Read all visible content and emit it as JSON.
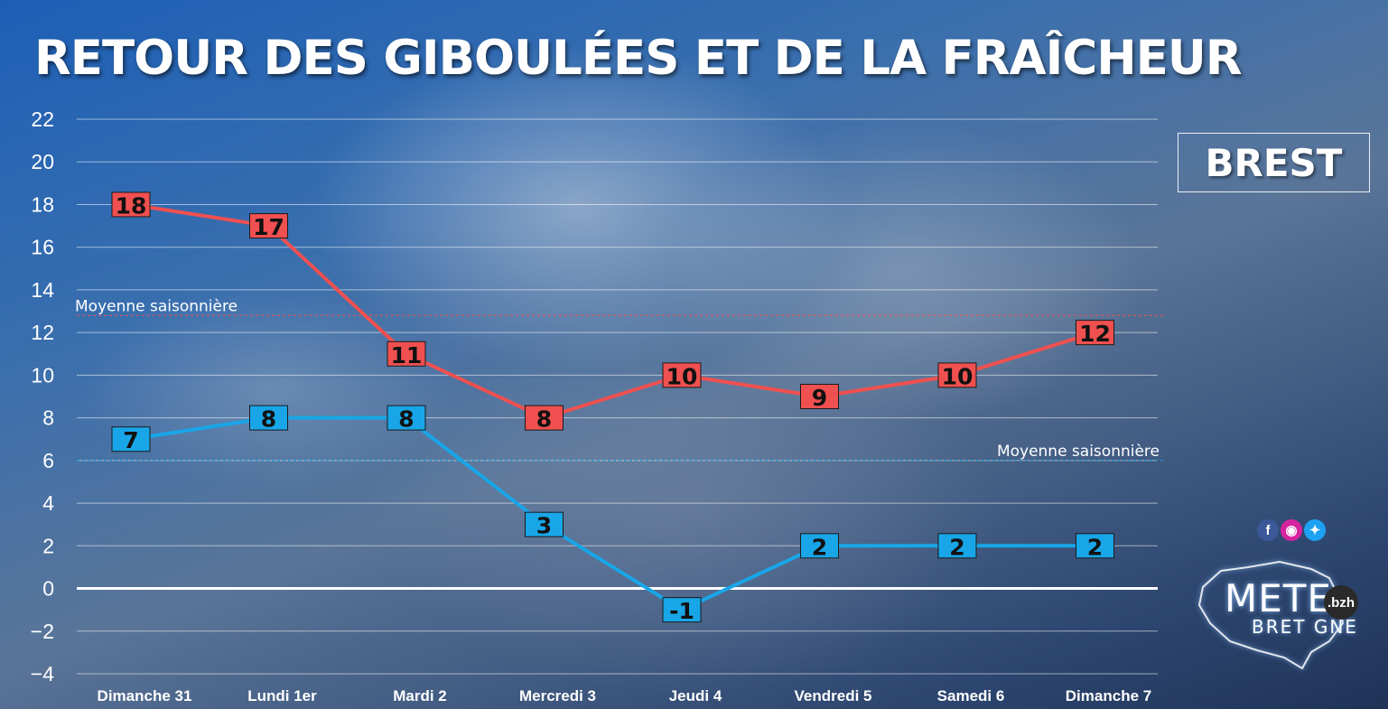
{
  "title": "RETOUR DES GIBOULÉES ET DE LA FRAÎCHEUR",
  "city": "BREST",
  "colors": {
    "max": "#f05050",
    "min": "#18a6e8",
    "label_text": "#111111"
  },
  "social_icons": [
    "facebook-icon",
    "instagram-icon",
    "twitter-icon"
  ],
  "logo": {
    "main": "METE",
    "sub": "BRET GNE",
    "badge": ".bzh"
  },
  "chart_data": {
    "type": "line",
    "categories": [
      "Dimanche 31",
      "Lundi 1er",
      "Mardi 2",
      "Mercredi 3",
      "Jeudi 4",
      "Vendredi 5",
      "Samedi 6",
      "Dimanche 7"
    ],
    "series": [
      {
        "key": "max",
        "values": [
          18,
          17,
          11,
          8,
          10,
          9,
          10,
          12
        ],
        "color": "#f05050"
      },
      {
        "key": "min",
        "values": [
          7,
          8,
          8,
          3,
          -1,
          2,
          2,
          2
        ],
        "color": "#18a6e8"
      }
    ],
    "yticks": [
      22,
      20,
      18,
      16,
      14,
      12,
      10,
      8,
      6,
      4,
      2,
      0,
      -2,
      -4
    ],
    "ylim": [
      -4,
      22
    ],
    "grid": true,
    "reference_lines": [
      {
        "label": "Moyenne saisonnière",
        "value": 12.8,
        "color": "#f05050",
        "label_position": "left"
      },
      {
        "label": "Moyenne saisonnière",
        "value": 6,
        "color": "#18a6e8",
        "label_position": "right"
      }
    ]
  }
}
